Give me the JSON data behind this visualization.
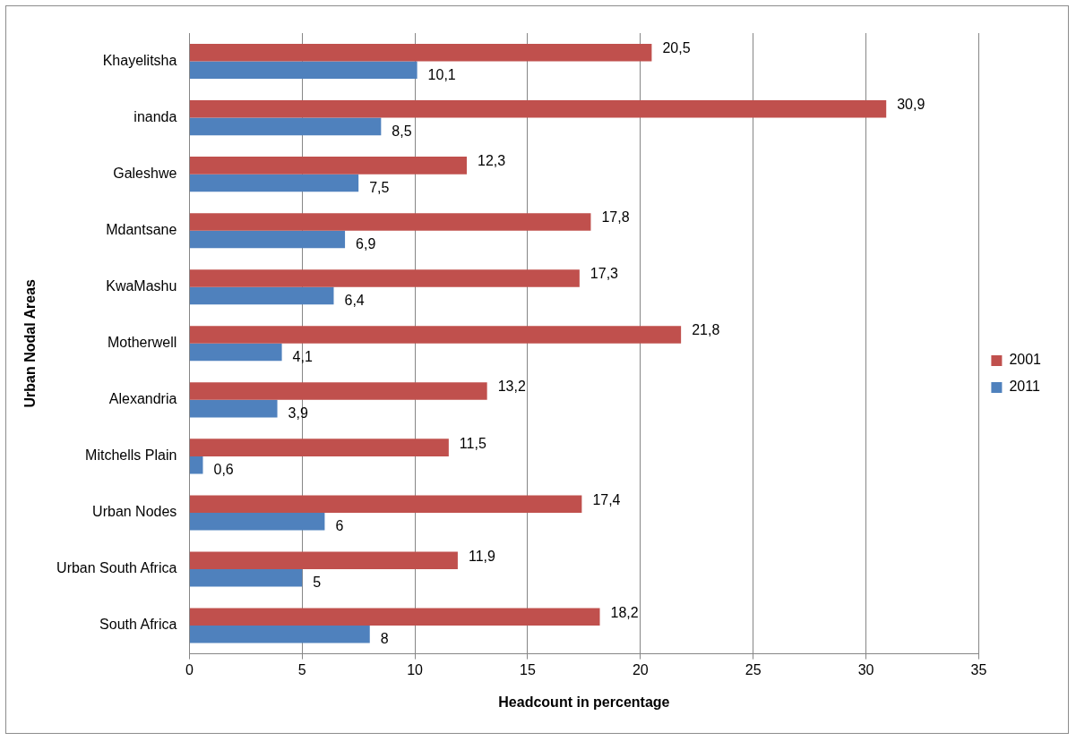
{
  "chart_data": {
    "type": "bar",
    "orientation": "horizontal",
    "xlabel": "Headcount in percentage",
    "ylabel": "Urban Nodal Areas",
    "categories": [
      "Khayelitsha",
      "inanda",
      "Galeshwe",
      "Mdantsane",
      "KwaMashu",
      "Motherwell",
      "Alexandria",
      "Mitchells Plain",
      "Urban Nodes",
      "Urban South Africa",
      "South Africa"
    ],
    "series": [
      {
        "name": "2001",
        "color": "#c0504d",
        "values": [
          20.5,
          30.9,
          12.3,
          17.8,
          17.3,
          21.8,
          13.2,
          11.5,
          17.4,
          11.9,
          18.2
        ],
        "value_labels": [
          "20,5",
          "30,9",
          "12,3",
          "17,8",
          "17,3",
          "21,8",
          "13,2",
          "11,5",
          "17,4",
          "11,9",
          "18,2"
        ]
      },
      {
        "name": "2011",
        "color": "#4f81bd",
        "values": [
          10.1,
          8.5,
          7.5,
          6.9,
          6.4,
          4.1,
          3.9,
          0.6,
          6,
          5,
          8
        ],
        "value_labels": [
          "10,1",
          "8,5",
          "7,5",
          "6,9",
          "6,4",
          "4,1",
          "3,9",
          "0,6",
          "6",
          "5",
          "8"
        ]
      }
    ],
    "xlim": [
      0,
      35
    ],
    "xticks": [
      0,
      5,
      10,
      15,
      20,
      25,
      30,
      35
    ],
    "grid": "x",
    "legend": "right"
  }
}
